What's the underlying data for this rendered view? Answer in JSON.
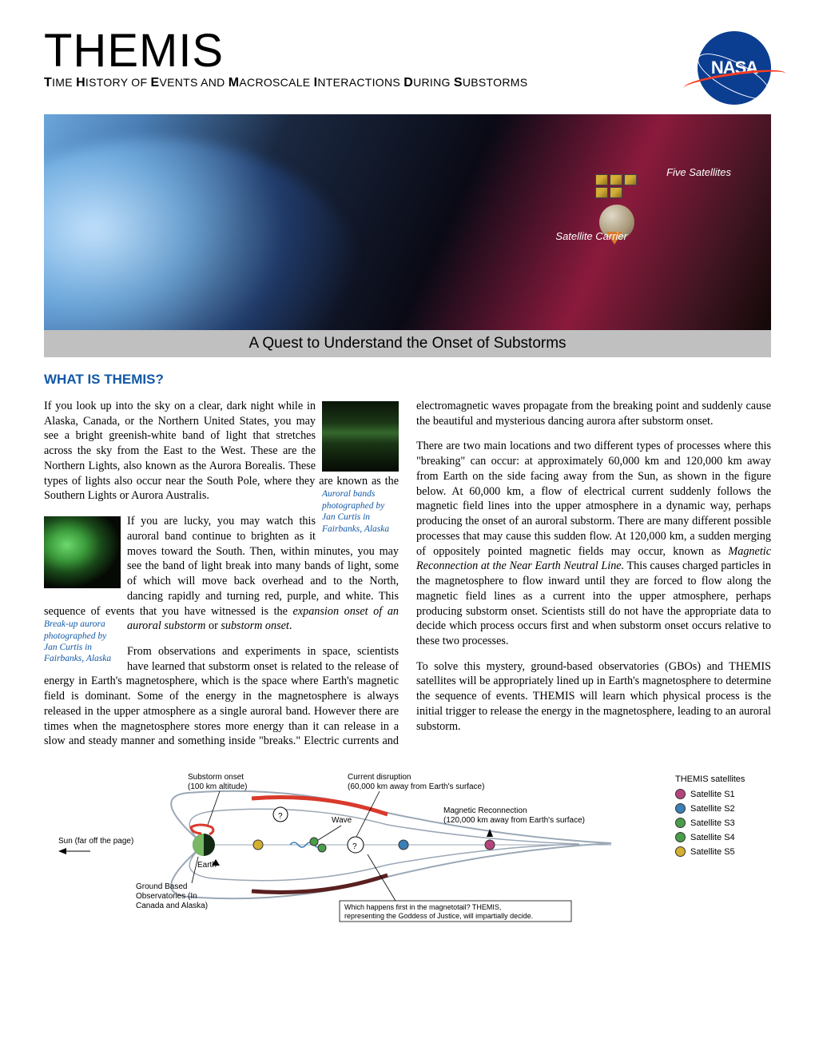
{
  "header": {
    "title": "THEMIS",
    "subtitle_parts": [
      "T",
      "IME ",
      "H",
      "ISTORY OF ",
      "E",
      "VENTS AND ",
      "M",
      "ACROSCALE ",
      "I",
      "NTERACTIONS ",
      "D",
      "URING ",
      "S",
      "UBSTORMS"
    ],
    "nasa": "NASA"
  },
  "banner": {
    "label_five": "Five Satellites",
    "label_carrier": "Satellite Carrier",
    "caption": "A Quest to Understand the Onset of Substorms"
  },
  "section_heading": "WHAT IS THEMIS?",
  "paragraphs": {
    "p1": "If you look up into the sky on a clear, dark night while in Alaska, Canada, or the Northern United States, you may see a bright greenish-white band of light that stretches across the sky from the East to the West. These are the Northern Lights, also known as the Aurora Borealis. These types of lights also occur near the South Pole, where they are known as the Southern Lights or Aurora Australis.",
    "p2_pre": "If you are lucky, you may watch this auroral band continue to brighten as it moves toward the South. Then, within minutes, you may see the band of light break into many bands of light, some of which will move back overhead and to the North, dancing rapidly and turning red, purple, and white. This sequence of events that you have witnessed is the ",
    "p2_em1": "expansion onset of an auroral substorm",
    "p2_mid": " or ",
    "p2_em2": "substorm onset",
    "p2_post": ".",
    "p3": "From observations and experiments in space, scientists have learned that substorm onset is related to the release of energy in Earth's magnetosphere, which is the space where Earth's magnetic field is dominant. Some of the energy in the magnetosphere is always released in the upper atmosphere as a single auroral band. However there are times when the magnetosphere stores more energy than it can release in a slow and steady manner and something inside \"breaks.\"  Electric currents and electromagnetic waves propagate from the breaking point and suddenly cause the beautiful and mysterious dancing aurora after substorm onset.",
    "p4_pre": "There are two main locations and two different types of processes where this \"breaking\" can occur: at approximately 60,000 km and 120,000 km away from Earth on the side facing away from the Sun, as shown in the figure below.  At 60,000 km, a flow of electrical current suddenly follows the magnetic field lines into the upper atmosphere in a dynamic way, perhaps producing the onset of an auroral substorm.  There are many different possible processes that may cause this sudden flow. At 120,000 km, a sudden merging of oppositely pointed magnetic fields may occur, known as ",
    "p4_em": "Magnetic Reconnection at the Near Earth Neutral Line.",
    "p4_post": "  This causes charged particles in the magnetosphere to flow inward until they are forced to flow along the magnetic field lines as a current into the upper atmosphere, perhaps producing substorm onset.   Scientists still do not have the appropriate data to decide which process occurs first and when substorm onset occurs relative to these two processes.",
    "p5": "To solve this mystery, ground-based observatories (GBOs) and THEMIS satellites will be appropriately lined up in Earth's magnetosphere to determine the sequence of events.  THEMIS will learn which physical process is the initial trigger to release the energy in the magnetosphere, leading to an auroral substorm."
  },
  "image_captions": {
    "auroral_bands": "Auroral bands photographed by Jan Curtis in Fairbanks, Alaska",
    "breakup": "Break-up aurora photographed by Jan Curtis in Fairbanks, Alaska"
  },
  "diagram": {
    "sun": "Sun (far off the page)",
    "substorm_onset": "Substorm onset",
    "substorm_onset2": "(100 km altitude)",
    "current_disruption": "Current disruption",
    "current_disruption2": "(60,000 km away from Earth's surface)",
    "wave": "Wave",
    "magnetic_reconnection": "Magnetic Reconnection",
    "magnetic_reconnection2": "(120,000 km away from Earth's surface)",
    "earth": "Earth",
    "gbo": "Ground Based",
    "gbo2": "Observatories (In",
    "gbo3": "Canada and Alaska)",
    "question": "Which happens first in the magnetotail? THEMIS,",
    "question2": "representing the Goddess of Justice, will impartially decide.",
    "legend_title": "THEMIS satellites",
    "satellites": [
      {
        "label": "Satellite S1",
        "color": "#b5447a"
      },
      {
        "label": "Satellite S2",
        "color": "#3a7fb5"
      },
      {
        "label": "Satellite S3",
        "color": "#4a9d4a"
      },
      {
        "label": "Satellite S4",
        "color": "#4a9d4a"
      },
      {
        "label": "Satellite S5",
        "color": "#d4b030"
      }
    ],
    "colors": {
      "field_line": "#9aa7b5",
      "tail_red": "#d93a2b",
      "tail_dark": "#5a2020",
      "earth_day": "#7ab866",
      "earth_night": "#122a12",
      "substorm_arc": "#d93a2b"
    }
  }
}
